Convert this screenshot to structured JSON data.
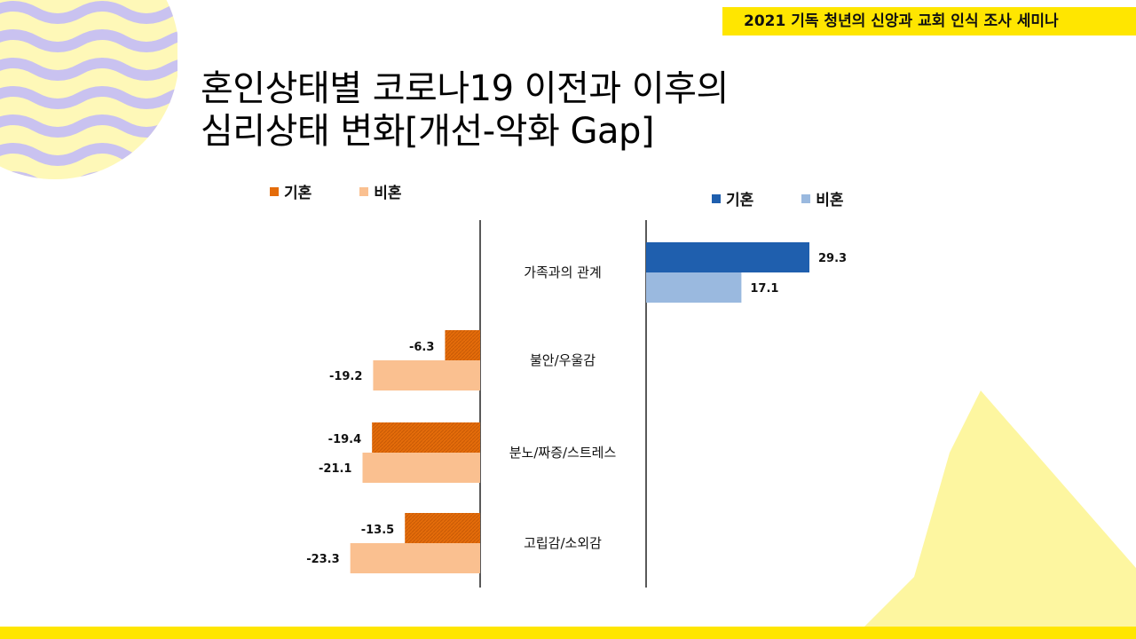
{
  "header": {
    "seminar": "2021 기독 청년의 신앙과 교회 인식 조사 세미나"
  },
  "title": {
    "line1": "혼인상태별 코로나19 이전과 이후의",
    "line2": "심리상태 변화[개선-악화 Gap]"
  },
  "legend_left": [
    {
      "label": "기혼",
      "color": "#e46c0a"
    },
    {
      "label": "비혼",
      "color": "#fac090"
    }
  ],
  "legend_right": [
    {
      "label": "기혼",
      "color": "#1f5fae"
    },
    {
      "label": "비혼",
      "color": "#9ab9df"
    }
  ],
  "colors": {
    "accent_yellow": "#ffe600",
    "wave_purple": "#c9c2f0",
    "deco_yellow": "#fdf6a0"
  },
  "chart_data": {
    "type": "bar",
    "orientation": "horizontal-diverging",
    "title": "혼인상태별 코로나19 이전과 이후의 심리상태 변화[개선-악화 Gap]",
    "categories": [
      "가족과의 관계",
      "불안/우울감",
      "분노/짜증/스트레스",
      "고립감/소외감"
    ],
    "series": [
      {
        "name": "기혼",
        "values": [
          29.3,
          -6.3,
          -19.4,
          -13.5
        ]
      },
      {
        "name": "비혼",
        "values": [
          17.1,
          -19.2,
          -21.1,
          -23.3
        ]
      }
    ],
    "negative_colors": {
      "기혼": "#e46c0a",
      "비혼": "#fac090"
    },
    "positive_colors": {
      "기혼": "#1f5fae",
      "비혼": "#9ab9df"
    }
  }
}
